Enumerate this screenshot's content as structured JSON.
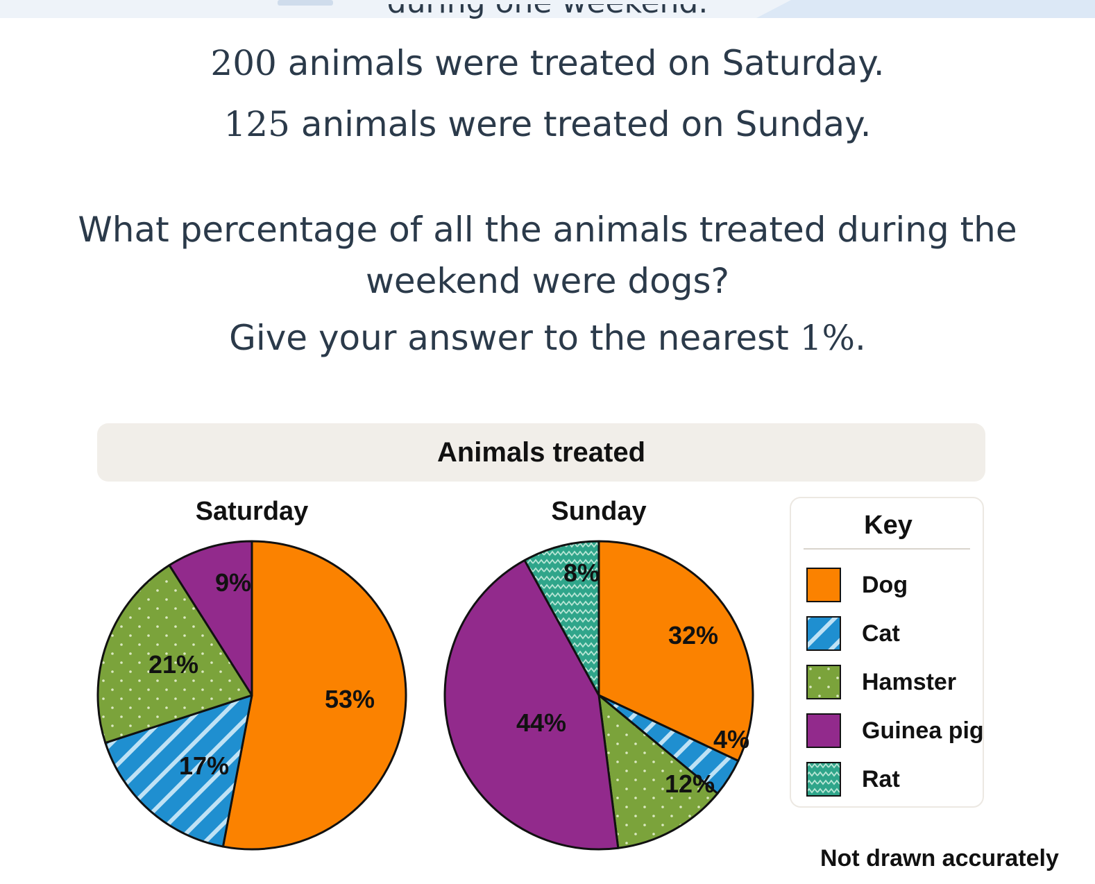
{
  "question": {
    "cut_line": "during one weekend.",
    "saturday_num": "200",
    "saturday_text": " animals were treated on Saturday.",
    "sunday_num": "125",
    "sunday_text": " animals were treated on Sunday.",
    "line1": "What percentage of all the animals treated during the",
    "line2": "weekend were dogs?",
    "line3_text": "Give your answer to the nearest ",
    "line3_num": "1%",
    "line3_end": "."
  },
  "chart_data": {
    "type": "pie",
    "title": "Animals treated",
    "note": "Not drawn accurately",
    "key_title": "Key",
    "categories": [
      "Dog",
      "Cat",
      "Hamster",
      "Guinea pig",
      "Rat"
    ],
    "colors": {
      "Dog": "#fb8200",
      "Cat": "#1f8fd0",
      "Hamster": "#7ba33b",
      "Guinea pig": "#922a8c",
      "Rat": "#2fa58a"
    },
    "series": [
      {
        "name": "Saturday",
        "slices": [
          {
            "label": "Dog",
            "value": 53
          },
          {
            "label": "Cat",
            "value": 17
          },
          {
            "label": "Hamster",
            "value": 21
          },
          {
            "label": "Guinea pig",
            "value": 9
          }
        ]
      },
      {
        "name": "Sunday",
        "slices": [
          {
            "label": "Dog",
            "value": 32
          },
          {
            "label": "Cat",
            "value": 4
          },
          {
            "label": "Hamster",
            "value": 12
          },
          {
            "label": "Guinea pig",
            "value": 44
          },
          {
            "label": "Rat",
            "value": 8
          }
        ]
      }
    ]
  }
}
